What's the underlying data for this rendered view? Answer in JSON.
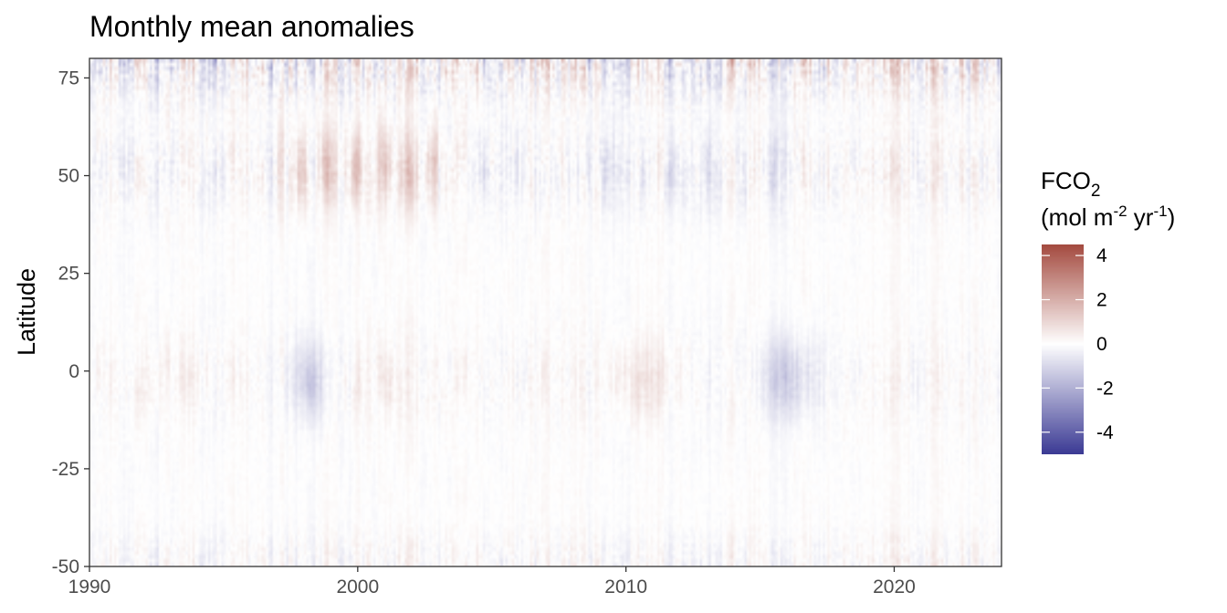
{
  "chart_data": {
    "type": "heatmap",
    "title": "Monthly mean anomalies",
    "xlabel": "",
    "ylabel": "Latitude",
    "xlim": [
      1990,
      2024
    ],
    "ylim": [
      -50,
      80
    ],
    "x_ticks": [
      "1990",
      "2000",
      "2010",
      "2020"
    ],
    "y_ticks": [
      "75",
      "50",
      "25",
      "0",
      "-25",
      "-50"
    ],
    "grid": false,
    "legend": {
      "placement": "right",
      "title_main": "FCO",
      "title_sub": "2",
      "unit_open": "(mol m",
      "unit_exp1": "-2",
      "unit_mid": " yr",
      "unit_exp2": "-1",
      "unit_close": ")",
      "range": [
        -5,
        4.5
      ],
      "ticks": [
        "4",
        "2",
        "0",
        "-2",
        "-4"
      ],
      "colors": {
        "low": "#3b3a94",
        "mid": "#ffffff",
        "high": "#a44a3f"
      }
    },
    "value_range": [
      -5,
      4.5
    ],
    "x_resolution": "monthly",
    "y_resolution_degrees": 1,
    "features": [
      {
        "region": "Arctic 65-80",
        "description": "strong alternating positive/negative monthly anomalies"
      },
      {
        "region": "Subpolar 45-60, 1997-2003",
        "description": "positive anomalies"
      },
      {
        "region": "Equator, 1997-1999 and 2015-2017",
        "description": "negative anomalies"
      },
      {
        "region": "Southern Ocean -50 to -40",
        "description": "moderate mixed anomalies"
      }
    ]
  }
}
